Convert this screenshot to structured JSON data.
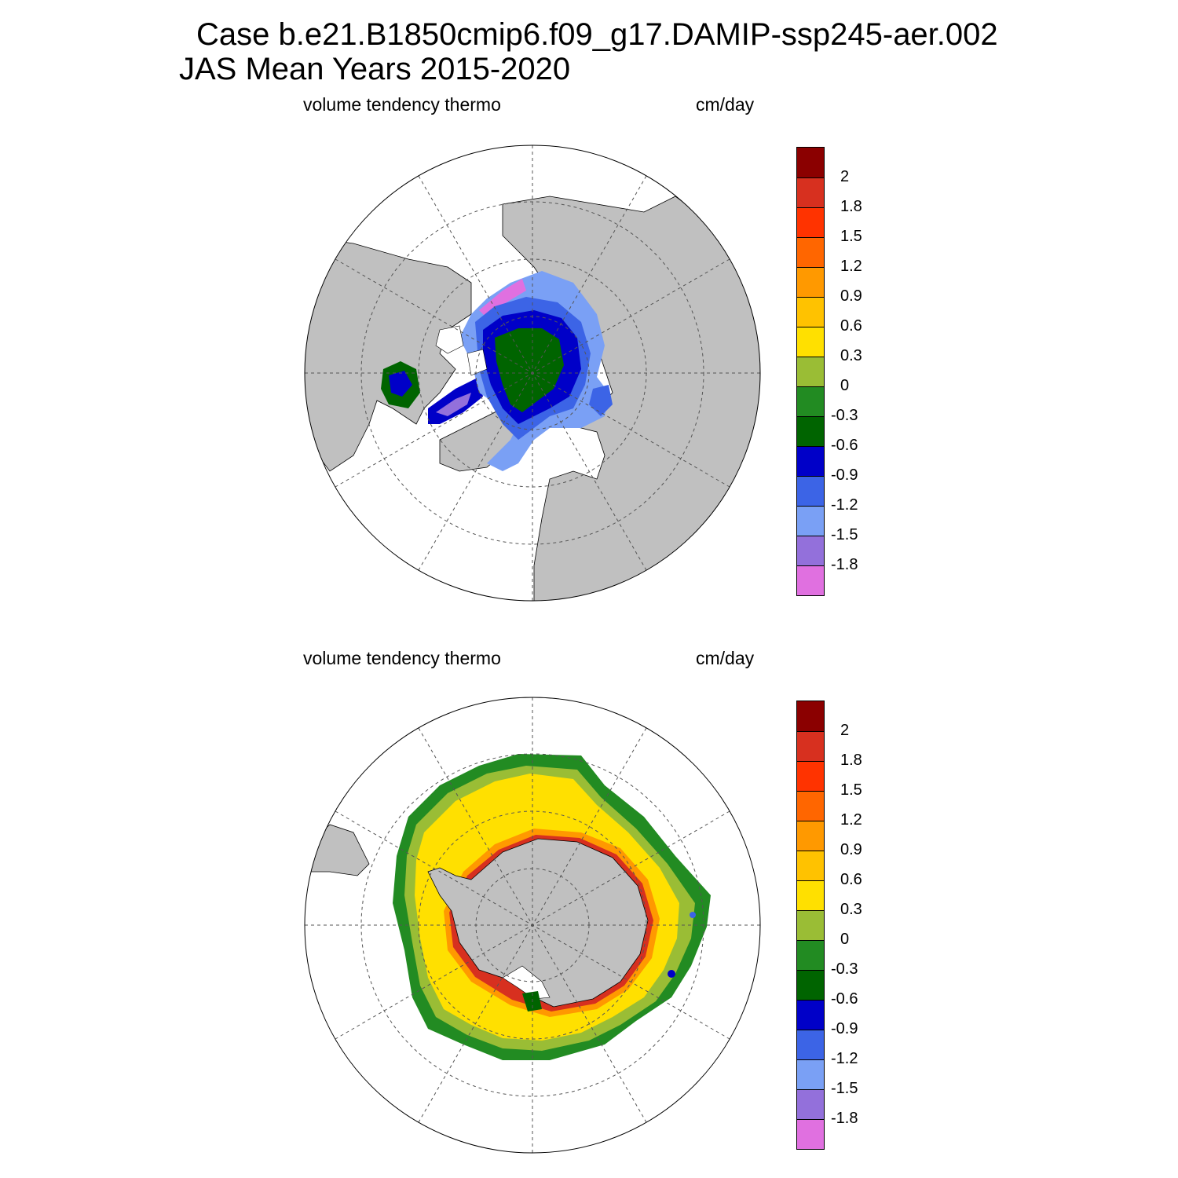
{
  "title": {
    "case": "Case b.e21.B1850cmip6.f09_g17.DAMIP-ssp245-aer.002",
    "period": "JAS Mean   Years 2015-2020"
  },
  "panels": [
    {
      "hemisphere": "north",
      "variable_label": "volume tendency thermo",
      "units_label": "cm/day"
    },
    {
      "hemisphere": "south",
      "variable_label": "volume tendency thermo",
      "units_label": "cm/day"
    }
  ],
  "colorbar": {
    "tick_labels": [
      "2",
      "1.8",
      "1.5",
      "1.2",
      "0.9",
      "0.6",
      "0.3",
      "0",
      "-0.3",
      "-0.6",
      "-0.9",
      "-1.2",
      "-1.5",
      "-1.8"
    ],
    "colors": [
      "#8b0000",
      "#d7301f",
      "#ff3300",
      "#ff6600",
      "#ff9900",
      "#ffc200",
      "#ffe000",
      "#9abd35",
      "#228b22",
      "#006400",
      "#0000c8",
      "#3c64e6",
      "#7aa0f5",
      "#9370db",
      "#e070e0"
    ]
  },
  "map_colors": {
    "land": "#c0c0c0",
    "ocean": "#ffffff",
    "graticule": "#555555"
  }
}
